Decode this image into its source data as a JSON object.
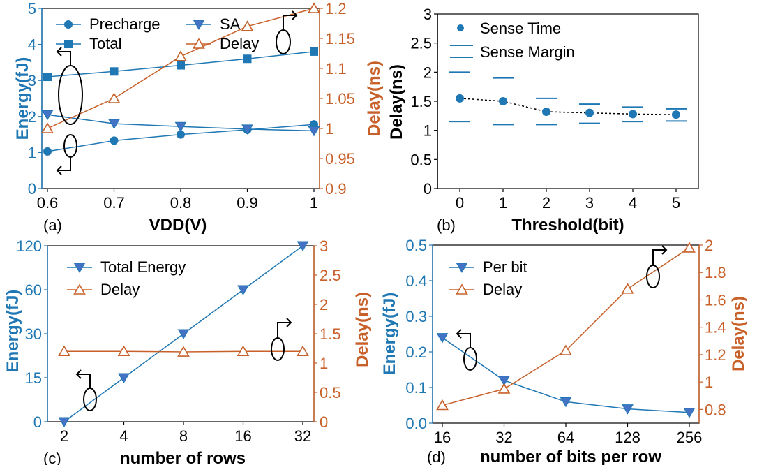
{
  "colors": {
    "blue": "#1f77b4",
    "orange": "#c8602a",
    "black": "#000000"
  },
  "chart_data": [
    {
      "id": "a",
      "type": "line",
      "panel_label": "(a)",
      "xlabel": "VDD(V)",
      "ylabel": "Energy(fJ)",
      "y2label": "Delay(ns)",
      "x": [
        0.6,
        0.7,
        0.8,
        0.9,
        1.0
      ],
      "x_ticks": [
        "0.6",
        "0.7",
        "0.8",
        "0.9",
        "1"
      ],
      "ylim": [
        0,
        5
      ],
      "y_ticks": [
        "0",
        "1",
        "2",
        "3",
        "4",
        "5"
      ],
      "y2lim": [
        0.9,
        1.2
      ],
      "y2_ticks": [
        "0.9",
        "0.95",
        "1",
        "1.05",
        "1.1",
        "1.15",
        "1.2"
      ],
      "series": [
        {
          "name": "Precharge",
          "axis": "left",
          "marker": "circle",
          "values": [
            1.03,
            1.33,
            1.5,
            1.63,
            1.78
          ]
        },
        {
          "name": "SA",
          "axis": "left",
          "marker": "triangle-down",
          "values": [
            2.05,
            1.8,
            1.72,
            1.65,
            1.6
          ]
        },
        {
          "name": "Total",
          "axis": "left",
          "marker": "square",
          "values": [
            3.1,
            3.25,
            3.42,
            3.6,
            3.8
          ]
        },
        {
          "name": "Delay",
          "axis": "right",
          "marker": "triangle-up-open",
          "values": [
            1.0,
            1.05,
            1.12,
            1.17,
            1.2
          ]
        }
      ]
    },
    {
      "id": "b",
      "type": "scatter",
      "panel_label": "(b)",
      "xlabel": "Threshold(bit)",
      "ylabel": "Delay(ns)",
      "x": [
        0,
        1,
        2,
        3,
        4,
        5
      ],
      "x_ticks": [
        "0",
        "1",
        "2",
        "3",
        "4",
        "5"
      ],
      "ylim": [
        0,
        3
      ],
      "y_ticks": [
        "0",
        "0.5",
        "1",
        "1.5",
        "2",
        "2.5",
        "3"
      ],
      "series": [
        {
          "name": "Sense Time",
          "marker": "circle",
          "values": [
            1.55,
            1.5,
            1.32,
            1.3,
            1.28,
            1.27
          ]
        },
        {
          "name": "Sense Margin",
          "marker": "hbar",
          "upper": [
            2.0,
            1.9,
            1.55,
            1.45,
            1.4,
            1.37
          ],
          "lower": [
            1.15,
            1.1,
            1.1,
            1.12,
            1.15,
            1.16
          ]
        }
      ]
    },
    {
      "id": "c",
      "type": "line",
      "panel_label": "(c)",
      "xlabel": "number of rows",
      "ylabel": "Energy(fJ)",
      "y2label": "Delay(ns)",
      "x": [
        2,
        4,
        8,
        16,
        32
      ],
      "x_ticks": [
        "2",
        "4",
        "8",
        "16",
        "32"
      ],
      "y_ticks": [
        "0",
        "15",
        "30",
        "60",
        "120"
      ],
      "y2lim": [
        0,
        3
      ],
      "y2_ticks": [
        "0",
        "0.5",
        "1",
        "1.5",
        "2",
        "2.5",
        "3"
      ],
      "series": [
        {
          "name": "Total Energy",
          "axis": "left",
          "marker": "triangle-down",
          "values": [
            0,
            15,
            30,
            60,
            120
          ]
        },
        {
          "name": "Delay",
          "axis": "right",
          "marker": "triangle-up-open",
          "values": [
            1.2,
            1.2,
            1.19,
            1.2,
            1.2
          ]
        }
      ]
    },
    {
      "id": "d",
      "type": "line",
      "panel_label": "(d)",
      "xlabel": "number of bits per row",
      "ylabel": "Energy(fJ)",
      "y2label": "Delay(ns)",
      "x": [
        16,
        32,
        64,
        128,
        256
      ],
      "x_ticks": [
        "16",
        "32",
        "64",
        "128",
        "256"
      ],
      "ylim": [
        0,
        0.5
      ],
      "y_ticks": [
        "0.0",
        "0.1",
        "0.2",
        "0.3",
        "0.4",
        "0.5"
      ],
      "y2lim": [
        0.7,
        2.0
      ],
      "y2_ticks": [
        "0.8",
        "1",
        "1.2",
        "1.4",
        "1.6",
        "1.8",
        "2"
      ],
      "series": [
        {
          "name": "Per bit",
          "axis": "left",
          "marker": "triangle-down",
          "values": [
            0.24,
            0.12,
            0.06,
            0.04,
            0.03
          ]
        },
        {
          "name": "Delay",
          "axis": "right",
          "marker": "triangle-up-open",
          "values": [
            0.83,
            0.95,
            1.23,
            1.68,
            1.98
          ]
        }
      ]
    }
  ]
}
